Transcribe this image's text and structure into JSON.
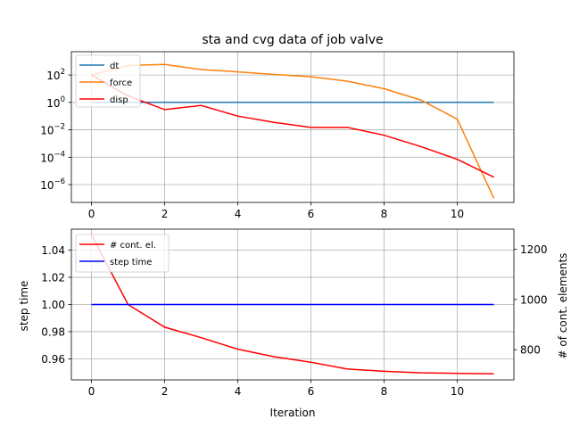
{
  "chart_data": [
    {
      "type": "line",
      "title": "sta and cvg data of job valve",
      "xlabel": "",
      "ylabel": "",
      "yscale": "log",
      "xlim": [
        -0.55,
        11.55
      ],
      "ylim_exp": [
        -7.3,
        3.7
      ],
      "x_ticks": [
        0,
        2,
        4,
        6,
        8,
        10
      ],
      "x_tick_labels": [
        "0",
        "2",
        "4",
        "6",
        "8",
        "10"
      ],
      "y_ticks_exp": [
        -6,
        -4,
        -2,
        0,
        2
      ],
      "y_tick_labels": [
        {
          "base": "10",
          "exp": "−6"
        },
        {
          "base": "10",
          "exp": "−4"
        },
        {
          "base": "10",
          "exp": "−2"
        },
        {
          "base": "10",
          "exp": "0"
        },
        {
          "base": "10",
          "exp": "2"
        }
      ],
      "grid": true,
      "legend": {
        "placement": "top-left",
        "entries": [
          "dt",
          "force",
          "disp"
        ]
      },
      "x": [
        0,
        1,
        2,
        3,
        4,
        5,
        6,
        7,
        8,
        9,
        10,
        11
      ],
      "series": [
        {
          "name": "dt",
          "color": "#1f77b4",
          "values": [
            1,
            1,
            1,
            1,
            1,
            1,
            1,
            1,
            1,
            1,
            1,
            1
          ]
        },
        {
          "name": "force",
          "color": "#ff7f0e",
          "values": [
            100,
            500,
            600,
            250,
            170,
            110,
            75,
            35,
            10,
            1.5,
            0.06,
            1e-07
          ]
        },
        {
          "name": "disp",
          "color": "#ff0000",
          "values": [
            100,
            3,
            0.3,
            0.6,
            0.1,
            0.035,
            0.015,
            0.015,
            0.004,
            0.0006,
            7e-05,
            3.5e-06
          ]
        }
      ]
    },
    {
      "type": "line",
      "title": "",
      "xlabel": "Iteration",
      "ylabel": "step time",
      "ylabel_right": "# of cont. elements",
      "xlim": [
        -0.55,
        11.55
      ],
      "ylim": [
        0.9445,
        1.0555
      ],
      "ylim_right": [
        680,
        1280
      ],
      "x_ticks": [
        0,
        2,
        4,
        6,
        8,
        10
      ],
      "x_tick_labels": [
        "0",
        "2",
        "4",
        "6",
        "8",
        "10"
      ],
      "y_ticks": [
        0.96,
        0.98,
        1.0,
        1.02,
        1.04
      ],
      "y_tick_labels": [
        "0.96",
        "0.98",
        "1.00",
        "1.02",
        "1.04"
      ],
      "y_ticks_right": [
        800,
        1000,
        1200
      ],
      "y_tick_labels_right": [
        "800",
        "1000",
        "1200"
      ],
      "grid": true,
      "legend": {
        "placement": "top-left",
        "entries": [
          "# cont. el.",
          "step time"
        ]
      },
      "x": [
        0,
        1,
        2,
        3,
        4,
        5,
        6,
        7,
        8,
        9,
        10,
        11
      ],
      "series": [
        {
          "name": "# cont. el.",
          "color": "#ff0000",
          "axis": "right",
          "values": [
            1258,
            980,
            890,
            848,
            802,
            772,
            750,
            723,
            714,
            708,
            706,
            704
          ]
        },
        {
          "name": "step time",
          "color": "#0000ff",
          "axis": "left",
          "values": [
            1,
            1,
            1,
            1,
            1,
            1,
            1,
            1,
            1,
            1,
            1,
            1
          ]
        }
      ]
    }
  ]
}
